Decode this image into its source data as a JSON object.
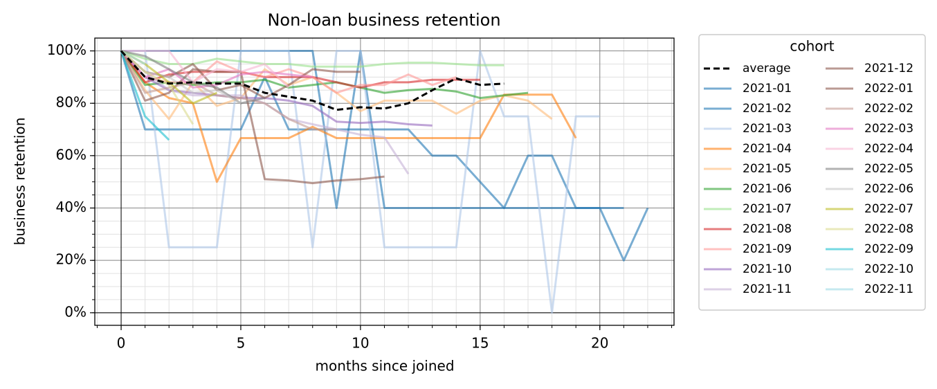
{
  "chart_data": {
    "type": "line",
    "title": "Non-loan business retention",
    "x_label": "months since joined",
    "y_label": "business retention",
    "x": [
      0,
      1,
      2,
      3,
      4,
      5,
      6,
      7,
      8,
      9,
      10,
      11,
      12,
      13,
      14,
      15,
      16,
      17,
      18,
      19,
      20,
      21,
      22
    ],
    "xlim": [
      -1.1,
      23.1
    ],
    "ylim": [
      -4.8,
      104.9
    ],
    "xticks": [
      0,
      5,
      10,
      15,
      20
    ],
    "yticks": [
      {
        "value": 0,
        "label": "0%"
      },
      {
        "value": 20,
        "label": "20%"
      },
      {
        "value": 40,
        "label": "40%"
      },
      {
        "value": 60,
        "label": "60%"
      },
      {
        "value": 80,
        "label": "80%"
      },
      {
        "value": 100,
        "label": "100%"
      }
    ],
    "xminorticks": [
      -1,
      0,
      1,
      2,
      3,
      4,
      5,
      6,
      7,
      8,
      9,
      10,
      11,
      12,
      13,
      14,
      15,
      16,
      17,
      18,
      19,
      20,
      21,
      22,
      23
    ],
    "yminorticks": [
      0,
      5,
      10,
      15,
      20,
      25,
      30,
      35,
      40,
      45,
      50,
      55,
      60,
      65,
      70,
      75,
      80,
      85,
      90,
      95,
      100
    ],
    "grid": true,
    "minor_grid": true,
    "zero_lines": true,
    "alpha": 0.6,
    "legend_title": "cohort",
    "legend_loc": "outside upper right",
    "legend_ncol": 2,
    "series": [
      {
        "name": "average",
        "color": "#000000",
        "dashed": true,
        "values": [
          100,
          90,
          87.5,
          88,
          87.5,
          87.5,
          84,
          82.5,
          81,
          77.5,
          78.5,
          78,
          80,
          85,
          89.5,
          87,
          87.5,
          null,
          null,
          null,
          null,
          null,
          null
        ]
      },
      {
        "name": "2021-01",
        "color": "#1f77b4",
        "values": [
          100,
          70,
          70,
          70,
          70,
          70,
          90,
          70,
          70,
          70,
          70,
          70,
          70,
          60,
          60,
          50,
          40,
          60,
          60,
          40,
          40,
          20,
          40
        ]
      },
      {
        "name": "2021-02",
        "color": "#1f77b4",
        "values": [
          100,
          100,
          100,
          100,
          100,
          100,
          100,
          100,
          100,
          40,
          100,
          40,
          40,
          40,
          40,
          40,
          40,
          40,
          40,
          40,
          40,
          40,
          null
        ]
      },
      {
        "name": "2021-03",
        "color": "#aec7e8",
        "values": [
          100,
          100,
          25,
          25,
          25,
          100,
          100,
          100,
          25,
          100,
          100,
          25,
          25,
          25,
          25,
          100,
          75,
          75,
          0,
          75,
          75,
          null,
          null
        ]
      },
      {
        "name": "2021-04",
        "color": "#ff7f0e",
        "values": [
          100,
          88,
          82,
          80,
          50,
          66.7,
          66.7,
          66.7,
          71,
          66.7,
          66.7,
          66.7,
          66.7,
          66.7,
          66.7,
          66.7,
          83.3,
          83.3,
          83.3,
          66.7,
          null,
          null,
          null
        ]
      },
      {
        "name": "2021-05",
        "color": "#ffbb78",
        "values": [
          100,
          85,
          74,
          88,
          79,
          82,
          93,
          87,
          90,
          84,
          77,
          81,
          81,
          81,
          76,
          81,
          83,
          81,
          74,
          null,
          null,
          null,
          null
        ]
      },
      {
        "name": "2021-06",
        "color": "#2ca02c",
        "values": [
          100,
          87,
          88,
          87,
          88,
          88,
          89,
          86,
          87,
          88,
          86,
          84,
          85,
          85.5,
          84.5,
          82,
          83,
          84,
          null,
          null,
          null,
          null,
          null
        ]
      },
      {
        "name": "2021-07",
        "color": "#98df8a",
        "values": [
          100,
          97,
          95,
          95,
          97,
          96,
          95,
          95,
          94,
          94,
          94,
          95,
          95.5,
          95.5,
          95,
          94.5,
          94.5,
          null,
          null,
          null,
          null,
          null,
          null
        ]
      },
      {
        "name": "2021-08",
        "color": "#d62728",
        "values": [
          100,
          88,
          91,
          92,
          92,
          92,
          90,
          90,
          90,
          88,
          86,
          88,
          88,
          89,
          89,
          89,
          null,
          null,
          null,
          null,
          null,
          null,
          null
        ]
      },
      {
        "name": "2021-09",
        "color": "#ff9896",
        "values": [
          100,
          90,
          88,
          88,
          96,
          92,
          90,
          93,
          90,
          84,
          87,
          87,
          91,
          87,
          90,
          null,
          null,
          null,
          null,
          null,
          null,
          null,
          null
        ]
      },
      {
        "name": "2021-10",
        "color": "#9467bd",
        "values": [
          100,
          90,
          85,
          84,
          83,
          82,
          82,
          81,
          79,
          73,
          72.5,
          73,
          72,
          71.5,
          null,
          null,
          null,
          null,
          null,
          null,
          null,
          null,
          null
        ]
      },
      {
        "name": "2021-11",
        "color": "#c5b0d5",
        "values": [
          100,
          92,
          85,
          83,
          83,
          83,
          80,
          74,
          72,
          70,
          68,
          67,
          53,
          null,
          null,
          null,
          null,
          null,
          null,
          null,
          null,
          null,
          null
        ]
      },
      {
        "name": "2021-12",
        "color": "#8c564b",
        "values": [
          100,
          81,
          84,
          93,
          92,
          92,
          51,
          50.5,
          49.5,
          50.5,
          51,
          52,
          null,
          null,
          null,
          null,
          null,
          null,
          null,
          null,
          null,
          null,
          null
        ]
      },
      {
        "name": "2022-01",
        "color": "#8c564b",
        "values": [
          100,
          92,
          90,
          95,
          85,
          87,
          82,
          87,
          93,
          92,
          92,
          null,
          null,
          null,
          null,
          null,
          null,
          null,
          null,
          null,
          null,
          null,
          null
        ]
      },
      {
        "name": "2022-02",
        "color": "#c49c94",
        "values": [
          100,
          84,
          86,
          88,
          83,
          82,
          80,
          74,
          70,
          70,
          null,
          null,
          null,
          null,
          null,
          null,
          null,
          null,
          null,
          null,
          null,
          null,
          null
        ]
      },
      {
        "name": "2022-03",
        "color": "#e377c2",
        "values": [
          100,
          90,
          93,
          86,
          87,
          91,
          92,
          91,
          90,
          null,
          null,
          null,
          null,
          null,
          null,
          null,
          null,
          null,
          null,
          null,
          null,
          null,
          null
        ]
      },
      {
        "name": "2022-04",
        "color": "#f7b6d2",
        "values": [
          100,
          100,
          100,
          88,
          93,
          92,
          95,
          86,
          null,
          null,
          null,
          null,
          null,
          null,
          null,
          null,
          null,
          null,
          null,
          null,
          null,
          null,
          null
        ]
      },
      {
        "name": "2022-05",
        "color": "#7f7f7f",
        "values": [
          100,
          98,
          93,
          88,
          86,
          80,
          82,
          null,
          null,
          null,
          null,
          null,
          null,
          null,
          null,
          null,
          null,
          null,
          null,
          null,
          null,
          null,
          null
        ]
      },
      {
        "name": "2022-06",
        "color": "#c7c7c7",
        "values": [
          100,
          92,
          90,
          84,
          85,
          80,
          null,
          null,
          null,
          null,
          null,
          null,
          null,
          null,
          null,
          null,
          null,
          null,
          null,
          null,
          null,
          null,
          null
        ]
      },
      {
        "name": "2022-07",
        "color": "#bcbd22",
        "values": [
          100,
          95,
          88,
          80,
          84,
          null,
          null,
          null,
          null,
          null,
          null,
          null,
          null,
          null,
          null,
          null,
          null,
          null,
          null,
          null,
          null,
          null,
          null
        ]
      },
      {
        "name": "2022-08",
        "color": "#dbdb8d",
        "values": [
          100,
          92,
          87,
          72,
          null,
          null,
          null,
          null,
          null,
          null,
          null,
          null,
          null,
          null,
          null,
          null,
          null,
          null,
          null,
          null,
          null,
          null,
          null
        ]
      },
      {
        "name": "2022-09",
        "color": "#17becf",
        "values": [
          100,
          75,
          66,
          null,
          null,
          null,
          null,
          null,
          null,
          null,
          null,
          null,
          null,
          null,
          null,
          null,
          null,
          null,
          null,
          null,
          null,
          null,
          null
        ]
      },
      {
        "name": "2022-10",
        "color": "#9edae5",
        "values": [
          100,
          95,
          null,
          null,
          null,
          null,
          null,
          null,
          null,
          null,
          null,
          null,
          null,
          null,
          null,
          null,
          null,
          null,
          null,
          null,
          null,
          null,
          null
        ]
      },
      {
        "name": "2022-11",
        "color": "#9edae5",
        "values": [
          100,
          null,
          null,
          null,
          null,
          null,
          null,
          null,
          null,
          null,
          null,
          null,
          null,
          null,
          null,
          null,
          null,
          null,
          null,
          null,
          null,
          null,
          null
        ]
      }
    ]
  }
}
